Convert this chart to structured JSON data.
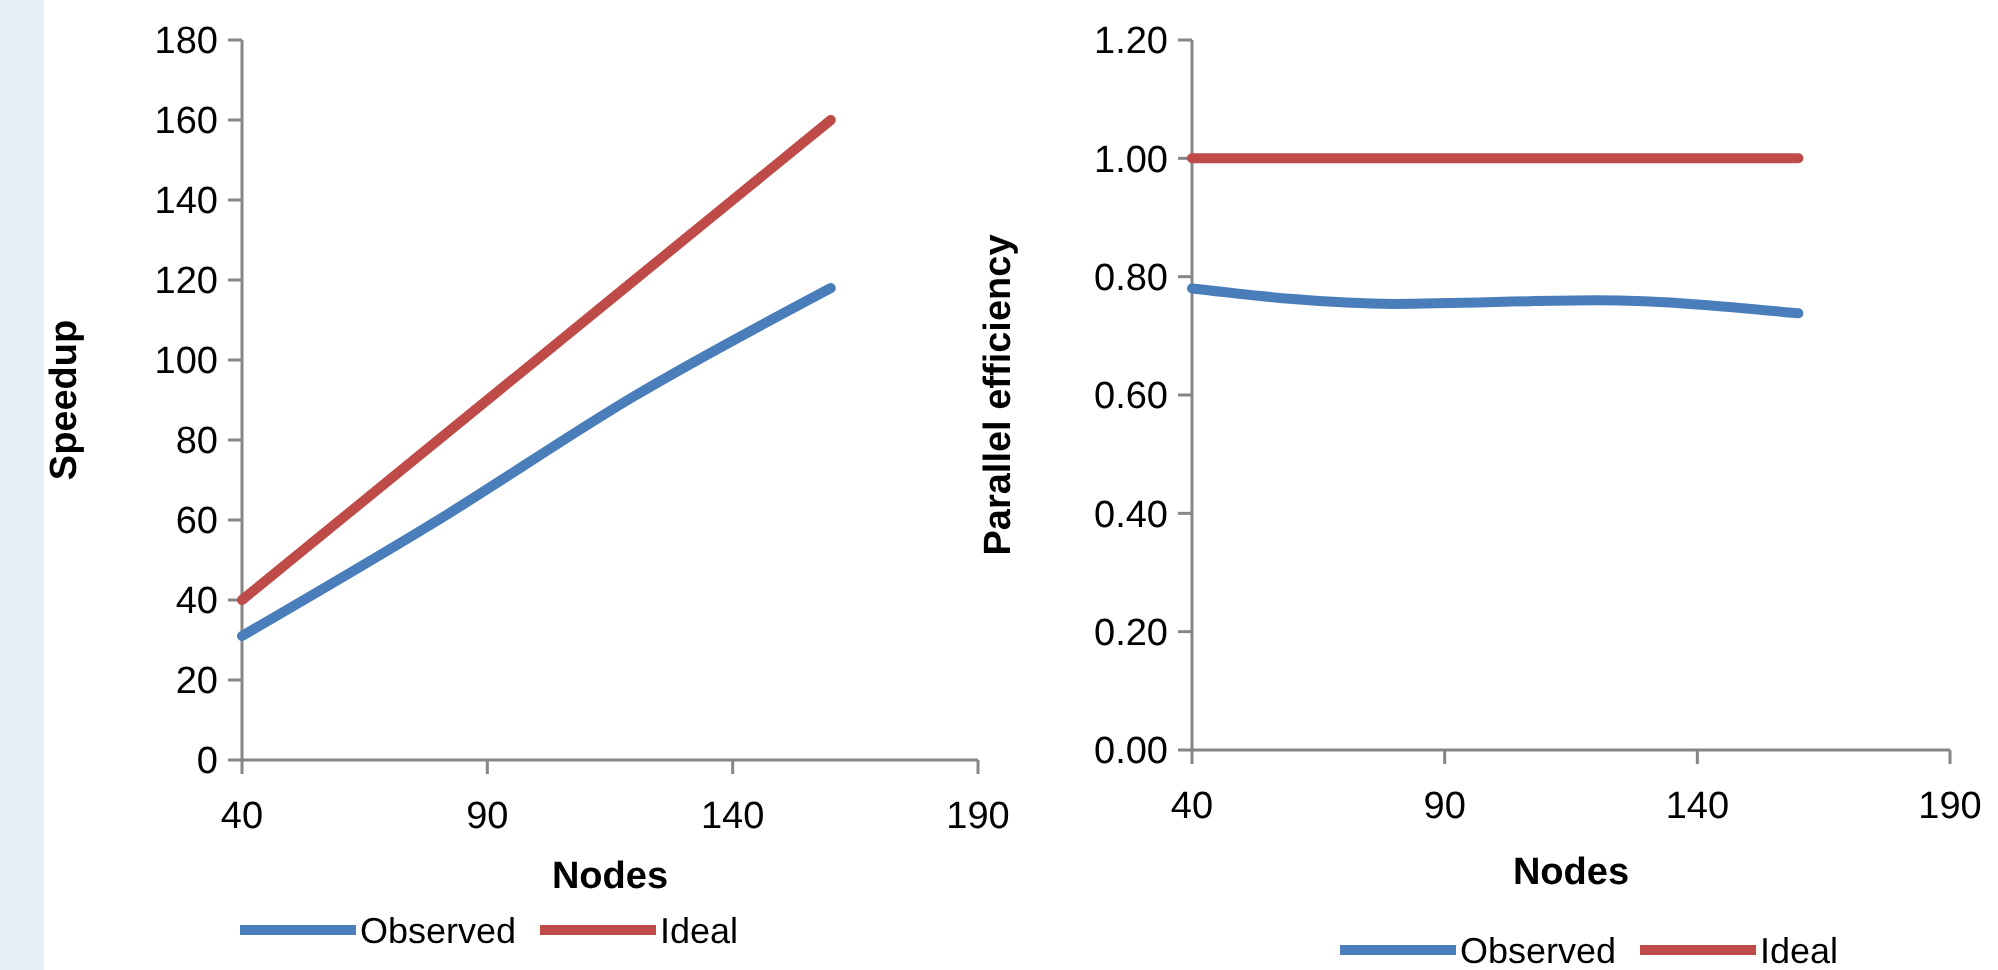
{
  "chart_data": [
    {
      "type": "line",
      "xlabel": "Nodes",
      "ylabel": "Speedup",
      "xlim": [
        40,
        190
      ],
      "xticks": [
        40,
        90,
        140,
        190
      ],
      "ylim": [
        0,
        180
      ],
      "yticks": [
        0,
        20,
        40,
        60,
        80,
        100,
        120,
        140,
        160,
        180
      ],
      "legend": "bottom",
      "grid": false,
      "marker": "none",
      "line_style": "solid",
      "series": [
        {
          "name": "Observed",
          "color": "#4a7ebb",
          "x": [
            40,
            80,
            120,
            160
          ],
          "values": [
            31,
            60,
            91,
            118
          ]
        },
        {
          "name": "Ideal",
          "color": "#be4b48",
          "x": [
            40,
            80,
            120,
            160
          ],
          "values": [
            40,
            80,
            120,
            160
          ]
        }
      ]
    },
    {
      "type": "line",
      "xlabel": "Nodes",
      "ylabel": "Parallel efficiency",
      "xlim": [
        40,
        190
      ],
      "xticks": [
        40,
        90,
        140,
        190
      ],
      "ylim": [
        0,
        1.2
      ],
      "yticks": [
        {
          "value": 0,
          "label": "0.00"
        },
        {
          "value": 0.2,
          "label": "0.20"
        },
        {
          "value": 0.4,
          "label": "0.40"
        },
        {
          "value": 0.6,
          "label": "0.60"
        },
        {
          "value": 0.8,
          "label": "0.80"
        },
        {
          "value": 1,
          "label": "1.00"
        },
        {
          "value": 1.2,
          "label": "1.20"
        }
      ],
      "legend": "bottom",
      "grid": false,
      "marker": "none",
      "line_style": "solid",
      "series": [
        {
          "name": "Observed",
          "color": "#4a7ebb",
          "x": [
            40,
            80,
            120,
            160
          ],
          "values": [
            0.78,
            0.754,
            0.76,
            0.738
          ]
        },
        {
          "name": "Ideal",
          "color": "#be4b48",
          "x": [
            40,
            80,
            120,
            160
          ],
          "values": [
            1,
            1,
            1,
            1
          ]
        }
      ]
    }
  ]
}
